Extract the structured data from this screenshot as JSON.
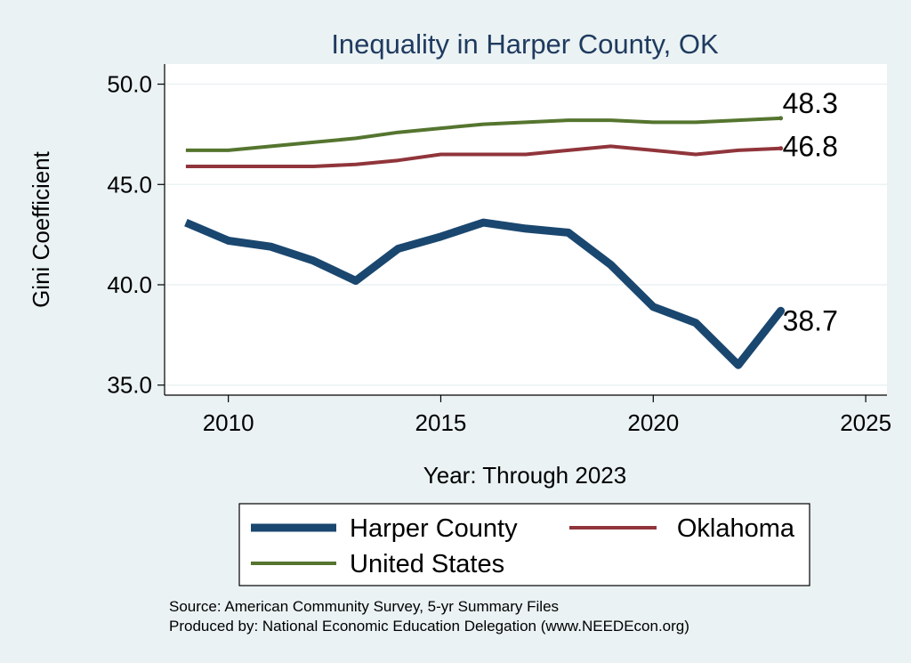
{
  "chart_data": {
    "type": "line",
    "title": "Inequality in Harper County, OK",
    "xlabel": "Year: Through 2023",
    "ylabel": "Gini Coefficient",
    "xlim": [
      2008.5,
      2025.5
    ],
    "ylim": [
      34.5,
      51.0
    ],
    "xticks": [
      "2010",
      "2015",
      "2020",
      "2025"
    ],
    "yticks": [
      "35.0",
      "40.0",
      "45.0",
      "50.0"
    ],
    "grid": true,
    "x": [
      2009,
      2010,
      2011,
      2012,
      2013,
      2014,
      2015,
      2016,
      2017,
      2018,
      2019,
      2020,
      2021,
      2022,
      2023
    ],
    "series": [
      {
        "name": "Harper County",
        "color": "#1a476f",
        "values": [
          43.1,
          42.2,
          41.9,
          41.2,
          40.2,
          41.8,
          42.4,
          43.1,
          42.8,
          42.6,
          41.0,
          38.9,
          38.1,
          36.0,
          38.7
        ],
        "end_label": "38.7"
      },
      {
        "name": "Oklahoma",
        "color": "#90353b",
        "values": [
          45.9,
          45.9,
          45.9,
          45.9,
          46.0,
          46.2,
          46.5,
          46.5,
          46.5,
          46.7,
          46.9,
          46.7,
          46.5,
          46.7,
          46.8
        ],
        "end_label": "46.8"
      },
      {
        "name": "United States",
        "color": "#55752f",
        "values": [
          46.7,
          46.7,
          46.9,
          47.1,
          47.3,
          47.6,
          47.8,
          48.0,
          48.1,
          48.2,
          48.2,
          48.1,
          48.1,
          48.2,
          48.3
        ],
        "end_label": "48.3"
      }
    ],
    "legend_position": "bottom"
  },
  "source_lines": [
    "Source: American Community Survey, 5-yr Summary Files",
    "Produced by: National Economic Education Delegation (www.NEEDEcon.org)"
  ]
}
